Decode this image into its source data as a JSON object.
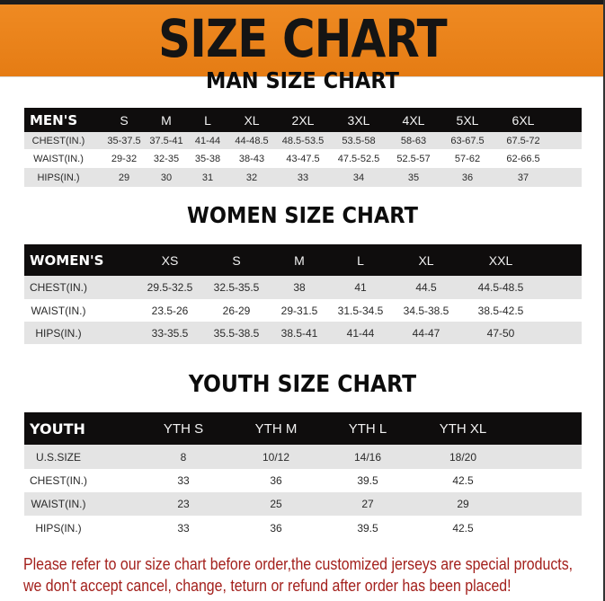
{
  "banner_title": "SIZE CHART",
  "men": {
    "title": "MAN SIZE CHART",
    "header": [
      "MEN'S",
      "S",
      "M",
      "L",
      "XL",
      "2XL",
      "3XL",
      "4XL",
      "5XL",
      "6XL"
    ],
    "rows": [
      [
        "CHEST(IN.)",
        "35-37.5",
        "37.5-41",
        "41-44",
        "44-48.5",
        "48.5-53.5",
        "53.5-58",
        "58-63",
        "63-67.5",
        "67.5-72"
      ],
      [
        "WAIST(IN.)",
        "29-32",
        "32-35",
        "35-38",
        "38-43",
        "43-47.5",
        "47.5-52.5",
        "52.5-57",
        "57-62",
        "62-66.5"
      ],
      [
        "HIPS(IN.)",
        "29",
        "30",
        "31",
        "32",
        "33",
        "34",
        "35",
        "36",
        "37"
      ]
    ]
  },
  "women": {
    "title": "WOMEN SIZE CHART",
    "header": [
      "WOMEN'S",
      "XS",
      "S",
      "M",
      "L",
      "XL",
      "XXL"
    ],
    "rows": [
      [
        "CHEST(IN.)",
        "29.5-32.5",
        "32.5-35.5",
        "38",
        "41",
        "44.5",
        "44.5-48.5"
      ],
      [
        "WAIST(IN.)",
        "23.5-26",
        "26-29",
        "29-31.5",
        "31.5-34.5",
        "34.5-38.5",
        "38.5-42.5"
      ],
      [
        "HIPS(IN.)",
        "33-35.5",
        "35.5-38.5",
        "38.5-41",
        "41-44",
        "44-47",
        "47-50"
      ]
    ]
  },
  "youth": {
    "title": "YOUTH SIZE CHART",
    "header": [
      "YOUTH",
      "YTH S",
      "YTH M",
      "YTH L",
      "YTH XL"
    ],
    "rows": [
      [
        "U.S.SIZE",
        "8",
        "10/12",
        "14/16",
        "18/20"
      ],
      [
        "CHEST(IN.)",
        "33",
        "36",
        "39.5",
        "42.5"
      ],
      [
        "WAIST(IN.)",
        "23",
        "25",
        "27",
        "29"
      ],
      [
        "HIPS(IN.)",
        "33",
        "36",
        "39.5",
        "42.5"
      ]
    ]
  },
  "notice": [
    "Please refer to our size chart before order,the customized jerseys are special products,",
    "we don't accept cancel, change, teturn or refund after order has been placed!"
  ],
  "colors": {
    "banner": "#e8821a",
    "header_row": "#0f0d0d",
    "notice_text": "#a3201c"
  }
}
